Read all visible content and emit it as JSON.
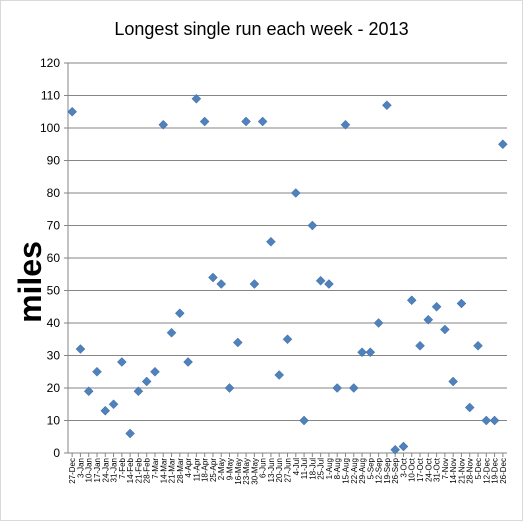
{
  "chart_data": {
    "type": "scatter",
    "title": "Longest single run each week - 2013",
    "ylabel": "miles",
    "xlabel": "",
    "ylim": [
      0,
      120
    ],
    "yticks": [
      0,
      10,
      20,
      30,
      40,
      50,
      60,
      70,
      80,
      90,
      100,
      110,
      120
    ],
    "grid": "horizontal",
    "legend": "none",
    "marker": "diamond",
    "color": "#4f81bd",
    "categories": [
      "27-Dec",
      "3-Jan",
      "10-Jan",
      "17-Jan",
      "24-Jan",
      "31-Jan",
      "7-Feb",
      "14-Feb",
      "21-Feb",
      "28-Feb",
      "7-Mar",
      "14-Mar",
      "21-Mar",
      "28-Mar",
      "4-Apr",
      "11-Apr",
      "18-Apr",
      "25-Apr",
      "2-May",
      "9-May",
      "16-May",
      "23-May",
      "30-May",
      "6-Jun",
      "13-Jun",
      "20-Jun",
      "27-Jun",
      "4-Jul",
      "11-Jul",
      "18-Jul",
      "25-Jul",
      "1-Aug",
      "8-Aug",
      "15-Aug",
      "22-Aug",
      "29-Aug",
      "5-Sep",
      "12-Sep",
      "19-Sep",
      "26-Sep",
      "3-Oct",
      "10-Oct",
      "17-Oct",
      "24-Oct",
      "31-Oct",
      "7-Nov",
      "14-Nov",
      "21-Nov",
      "28-Nov",
      "5-Dec",
      "12-Dec",
      "19-Dec",
      "26-Dec"
    ],
    "values": [
      105,
      32,
      19,
      25,
      13,
      15,
      28,
      6,
      19,
      22,
      25,
      101,
      37,
      43,
      28,
      109,
      102,
      54,
      52,
      20,
      34,
      102,
      52,
      102,
      65,
      24,
      35,
      80,
      10,
      70,
      53,
      52,
      20,
      101,
      20,
      31,
      31,
      40,
      107,
      1,
      2,
      47,
      33,
      41,
      45,
      38,
      22,
      46,
      14,
      33,
      10,
      10,
      95
    ]
  }
}
